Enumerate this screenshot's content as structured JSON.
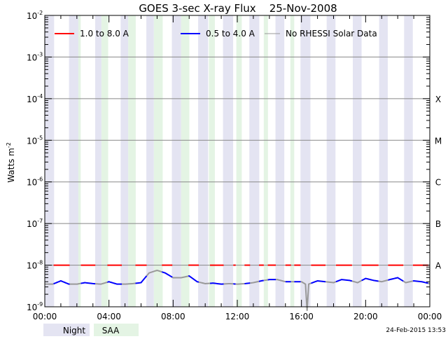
{
  "chart_data": {
    "type": "line",
    "title": "GOES 3-sec X-ray Flux    25-Nov-2008",
    "xlabel": "",
    "ylabel": "Watts m",
    "ylabel_exp": "-2",
    "xlim_hours": [
      0,
      24
    ],
    "ylim_log10": [
      -9,
      -2
    ],
    "yscale": "log",
    "x_tick_labels": [
      "00:00",
      "04:00",
      "08:00",
      "12:00",
      "16:00",
      "20:00",
      "00:00"
    ],
    "y_tick_labels": [
      {
        "base": "10",
        "exp": "-2"
      },
      {
        "base": "10",
        "exp": "-3"
      },
      {
        "base": "10",
        "exp": "-4"
      },
      {
        "base": "10",
        "exp": "-5"
      },
      {
        "base": "10",
        "exp": "-6"
      },
      {
        "base": "10",
        "exp": "-7"
      },
      {
        "base": "10",
        "exp": "-8"
      },
      {
        "base": "10",
        "exp": "-9"
      }
    ],
    "flare_classes": [
      {
        "label": "X",
        "log10": -4
      },
      {
        "label": "M",
        "log10": -5
      },
      {
        "label": "C",
        "log10": -6
      },
      {
        "label": "B",
        "log10": -7
      },
      {
        "label": "A",
        "log10": -8
      }
    ],
    "grid": true,
    "legend_position": "top-left",
    "legend": [
      {
        "label": "1.0 to 8.0 A",
        "color": "#ff0000"
      },
      {
        "label": "0.5 to 4.0 A",
        "color": "#0000ff"
      },
      {
        "label": "No RHESSI Solar Data",
        "color": "#999999"
      }
    ],
    "series": [
      {
        "name": "1.0 to 8.0 A",
        "color": "#ff0000",
        "x": [
          0,
          24
        ],
        "values": [
          1e-08,
          1e-08
        ]
      },
      {
        "name": "0.5 to 4.0 A",
        "color": "#0000ff",
        "x": [
          0,
          0.5,
          1,
          1.5,
          2,
          2.5,
          3,
          3.5,
          4,
          4.5,
          5,
          5.5,
          6,
          6.5,
          7,
          7.5,
          8,
          8.5,
          9,
          9.5,
          10,
          10.5,
          11,
          11.5,
          12,
          12.5,
          13,
          13.5,
          14,
          14.5,
          15,
          15.5,
          16,
          16.25,
          16.35,
          16.45,
          17,
          17.5,
          18,
          18.5,
          19,
          19.5,
          20,
          20.5,
          21,
          21.5,
          22,
          22.5,
          23,
          23.5,
          24
        ],
        "values": [
          3.5e-09,
          3.5e-09,
          4.2e-09,
          3.5e-09,
          3.5e-09,
          3.8e-09,
          3.6e-09,
          3.5e-09,
          4e-09,
          3.5e-09,
          3.5e-09,
          3.6e-09,
          3.8e-09,
          6.5e-09,
          7.5e-09,
          6.5e-09,
          5e-09,
          5e-09,
          5.5e-09,
          4e-09,
          3.6e-09,
          3.7e-09,
          3.5e-09,
          3.6e-09,
          3.5e-09,
          3.6e-09,
          3.8e-09,
          4.2e-09,
          4.5e-09,
          4.5e-09,
          4e-09,
          4e-09,
          4e-09,
          3.5e-09,
          8e-10,
          3.5e-09,
          4.2e-09,
          4e-09,
          3.8e-09,
          4.5e-09,
          4.3e-09,
          3.8e-09,
          4.8e-09,
          4.3e-09,
          4e-09,
          4.5e-09,
          5e-09,
          3.8e-09,
          4.2e-09,
          4e-09,
          3.6e-09
        ]
      }
    ],
    "rhessi_data_intervals_hours": [
      [
        0.53,
        1.54
      ],
      [
        2.24,
        3.14
      ],
      [
        3.88,
        4.78
      ],
      [
        5.63,
        6.33
      ],
      [
        7.27,
        7.92
      ],
      [
        8.93,
        9.56
      ],
      [
        10.26,
        11.11
      ],
      [
        11.74,
        11.89
      ],
      [
        12.44,
        12.75
      ],
      [
        13.34,
        13.6
      ],
      [
        13.88,
        14.38
      ],
      [
        15.0,
        15.31
      ],
      [
        15.55,
        15.94
      ],
      [
        16.56,
        17.49
      ],
      [
        18.12,
        19.13
      ],
      [
        19.75,
        20.76
      ],
      [
        21.38,
        22.32
      ],
      [
        22.94,
        23.88
      ]
    ],
    "night_intervals_hours": [
      [
        0,
        0.58
      ],
      [
        1.51,
        2.1
      ],
      [
        3.14,
        3.53
      ],
      [
        4.73,
        5.2
      ],
      [
        6.33,
        6.8
      ],
      [
        7.92,
        8.5
      ],
      [
        9.56,
        10.18
      ],
      [
        11.11,
        11.74
      ],
      [
        12.75,
        13.37
      ],
      [
        14.38,
        14.93
      ],
      [
        15.94,
        16.56
      ],
      [
        17.57,
        18.12
      ],
      [
        19.2,
        19.75
      ],
      [
        20.84,
        21.38
      ],
      [
        22.4,
        22.94
      ]
    ],
    "saa_intervals_hours": [
      [
        2.09,
        2.24
      ],
      [
        3.53,
        3.95
      ],
      [
        5.2,
        5.67
      ],
      [
        6.8,
        7.35
      ],
      [
        8.5,
        9.01
      ],
      [
        10.23,
        10.6
      ],
      [
        11.94,
        12.28
      ],
      [
        13.65,
        13.91
      ],
      [
        15.31,
        15.55
      ]
    ],
    "band_legend": {
      "night": "Night",
      "saa": "SAA"
    },
    "colors": {
      "night": "#e4e4f2",
      "saa": "#e4f4e4",
      "grid": "#888888"
    }
  },
  "footer": {
    "timestamp": "24-Feb-2015 13:53"
  }
}
